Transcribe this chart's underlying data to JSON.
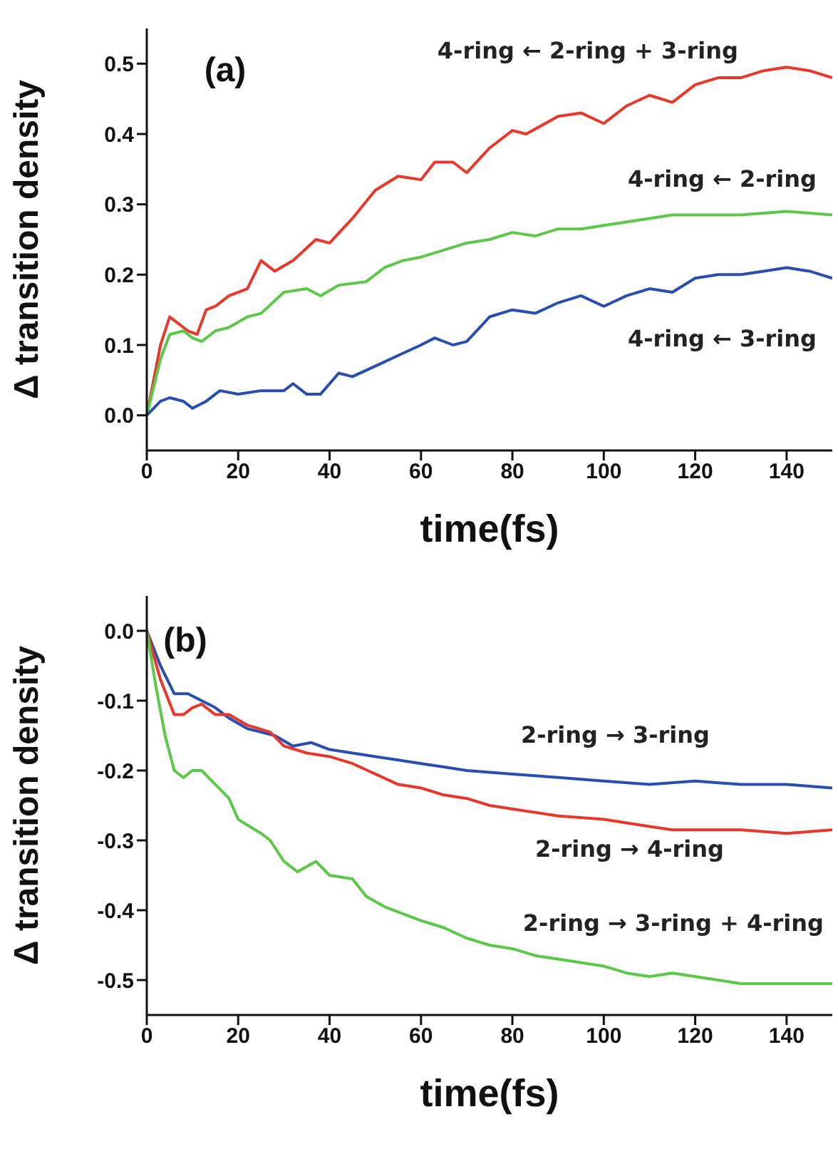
{
  "chart_data": [
    {
      "type": "line",
      "title": "(a)",
      "xlabel": "time(fs)",
      "ylabel": "Δ transition density",
      "xlim": [
        0,
        150
      ],
      "xticks": [
        0,
        20,
        40,
        60,
        80,
        100,
        120,
        140
      ],
      "ylim": [
        -0.05,
        0.55
      ],
      "yticks": [
        {
          "value": 0,
          "label": "0.0"
        },
        {
          "value": 0.1,
          "label": "0.1"
        },
        {
          "value": 0.2,
          "label": "0.2"
        },
        {
          "value": 0.3,
          "label": "0.3"
        },
        {
          "value": 0.4,
          "label": "0.4"
        },
        {
          "value": 0.5,
          "label": "0.5"
        }
      ],
      "marker": "none",
      "line_style": "solid",
      "series": [
        {
          "name": "4-ring ← 2-ring + 3-ring",
          "color": "#e8372b",
          "x": [
            0,
            3,
            5,
            7,
            9,
            11,
            13,
            15,
            18,
            22,
            25,
            28,
            32,
            37,
            40,
            45,
            50,
            55,
            60,
            63,
            67,
            70,
            75,
            80,
            83,
            90,
            95,
            100,
            105,
            110,
            115,
            120,
            125,
            130,
            135,
            140,
            145,
            150
          ],
          "values": [
            0,
            0.1,
            0.14,
            0.13,
            0.12,
            0.115,
            0.15,
            0.155,
            0.17,
            0.18,
            0.22,
            0.205,
            0.22,
            0.25,
            0.245,
            0.28,
            0.32,
            0.34,
            0.335,
            0.36,
            0.36,
            0.345,
            0.38,
            0.405,
            0.4,
            0.425,
            0.43,
            0.415,
            0.44,
            0.455,
            0.445,
            0.47,
            0.48,
            0.48,
            0.49,
            0.495,
            0.49,
            0.48
          ]
        },
        {
          "name": "4-ring ← 2-ring",
          "color": "#5cc84a",
          "x": [
            0,
            3,
            5,
            8,
            10,
            12,
            15,
            18,
            22,
            25,
            30,
            35,
            38,
            42,
            48,
            52,
            56,
            60,
            65,
            70,
            75,
            80,
            85,
            90,
            95,
            100,
            110,
            115,
            120,
            130,
            140,
            150
          ],
          "values": [
            0,
            0.08,
            0.115,
            0.12,
            0.11,
            0.105,
            0.12,
            0.125,
            0.14,
            0.145,
            0.175,
            0.18,
            0.17,
            0.185,
            0.19,
            0.21,
            0.22,
            0.225,
            0.235,
            0.245,
            0.25,
            0.26,
            0.255,
            0.265,
            0.265,
            0.27,
            0.28,
            0.285,
            0.285,
            0.285,
            0.29,
            0.285
          ]
        },
        {
          "name": "4-ring ← 3-ring",
          "color": "#2a4db0",
          "x": [
            0,
            3,
            5,
            8,
            10,
            13,
            16,
            20,
            25,
            30,
            32,
            35,
            38,
            42,
            45,
            50,
            55,
            60,
            63,
            67,
            70,
            75,
            80,
            85,
            90,
            95,
            100,
            105,
            110,
            115,
            120,
            125,
            130,
            135,
            140,
            145,
            150
          ],
          "values": [
            0,
            0.02,
            0.025,
            0.02,
            0.01,
            0.02,
            0.035,
            0.03,
            0.035,
            0.035,
            0.045,
            0.03,
            0.03,
            0.06,
            0.055,
            0.07,
            0.085,
            0.1,
            0.11,
            0.1,
            0.105,
            0.14,
            0.15,
            0.145,
            0.16,
            0.17,
            0.155,
            0.17,
            0.18,
            0.175,
            0.195,
            0.2,
            0.2,
            0.205,
            0.21,
            0.205,
            0.195
          ]
        }
      ]
    },
    {
      "type": "line",
      "title": "(b)",
      "xlabel": "time(fs)",
      "ylabel": "Δ transition density",
      "xlim": [
        0,
        150
      ],
      "xticks": [
        0,
        20,
        40,
        60,
        80,
        100,
        120,
        140
      ],
      "ylim": [
        -0.55,
        0.05
      ],
      "yticks": [
        {
          "value": -0.5,
          "label": "-0.5"
        },
        {
          "value": -0.4,
          "label": "-0.4"
        },
        {
          "value": -0.3,
          "label": "-0.3"
        },
        {
          "value": -0.2,
          "label": "-0.2"
        },
        {
          "value": -0.1,
          "label": "-0.1"
        },
        {
          "value": 0,
          "label": "0.0"
        }
      ],
      "marker": "none",
      "line_style": "solid",
      "series": [
        {
          "name": "2-ring → 3-ring",
          "color": "#2a4db0",
          "x": [
            0,
            3,
            6,
            9,
            12,
            15,
            18,
            22,
            25,
            28,
            32,
            36,
            40,
            45,
            50,
            55,
            60,
            65,
            70,
            80,
            90,
            100,
            110,
            120,
            130,
            140,
            150
          ],
          "values": [
            0,
            -0.05,
            -0.09,
            -0.09,
            -0.1,
            -0.11,
            -0.125,
            -0.14,
            -0.145,
            -0.15,
            -0.165,
            -0.16,
            -0.17,
            -0.175,
            -0.18,
            -0.185,
            -0.19,
            -0.195,
            -0.2,
            -0.205,
            -0.21,
            -0.215,
            -0.22,
            -0.215,
            -0.22,
            -0.22,
            -0.225
          ]
        },
        {
          "name": "2-ring → 4-ring",
          "color": "#e8372b",
          "x": [
            0,
            3,
            6,
            8,
            10,
            12,
            15,
            18,
            22,
            27,
            30,
            35,
            40,
            45,
            50,
            55,
            60,
            65,
            70,
            75,
            80,
            90,
            100,
            105,
            110,
            115,
            120,
            130,
            140,
            150
          ],
          "values": [
            0,
            -0.07,
            -0.12,
            -0.12,
            -0.11,
            -0.105,
            -0.12,
            -0.12,
            -0.135,
            -0.145,
            -0.165,
            -0.175,
            -0.18,
            -0.19,
            -0.205,
            -0.22,
            -0.225,
            -0.235,
            -0.24,
            -0.25,
            -0.255,
            -0.265,
            -0.27,
            -0.275,
            -0.28,
            -0.285,
            -0.285,
            -0.285,
            -0.29,
            -0.285
          ]
        },
        {
          "name": "2-ring → 3-ring + 4-ring",
          "color": "#5cc84a",
          "x": [
            0,
            2,
            4,
            6,
            8,
            10,
            12,
            15,
            18,
            20,
            25,
            27,
            30,
            33,
            37,
            40,
            45,
            48,
            52,
            56,
            60,
            65,
            70,
            75,
            80,
            85,
            90,
            95,
            100,
            105,
            110,
            115,
            120,
            125,
            130,
            140,
            150
          ],
          "values": [
            0,
            -0.08,
            -0.15,
            -0.2,
            -0.21,
            -0.2,
            -0.2,
            -0.22,
            -0.24,
            -0.27,
            -0.29,
            -0.3,
            -0.33,
            -0.345,
            -0.33,
            -0.35,
            -0.355,
            -0.38,
            -0.395,
            -0.405,
            -0.415,
            -0.425,
            -0.44,
            -0.45,
            -0.455,
            -0.465,
            -0.47,
            -0.475,
            -0.48,
            -0.49,
            -0.495,
            -0.49,
            -0.495,
            -0.5,
            -0.505,
            -0.505,
            -0.505
          ]
        }
      ]
    }
  ]
}
